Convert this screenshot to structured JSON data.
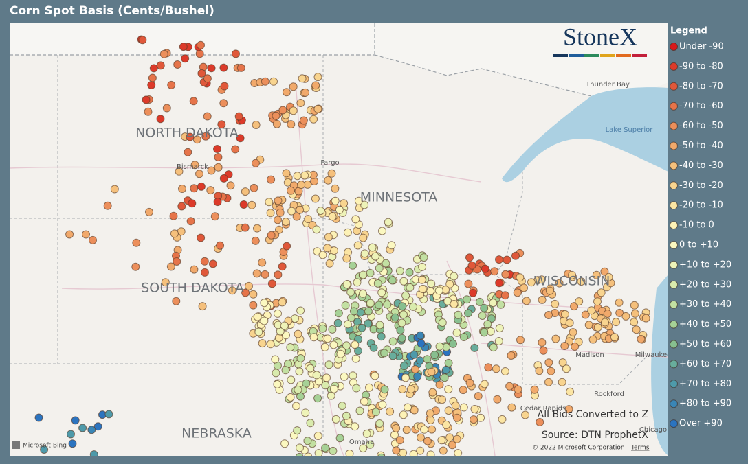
{
  "title": "Corn Spot Basis (Cents/Bushel)",
  "logo": "StoneX",
  "legend": {
    "title": "Legend",
    "items": [
      {
        "label": "Under -90",
        "color": "#d7191c"
      },
      {
        "label": "-90 to -80",
        "color": "#dc3a2a"
      },
      {
        "label": "-80 to -70",
        "color": "#e0583a"
      },
      {
        "label": "-70 to -60",
        "color": "#e6744a"
      },
      {
        "label": "-60 to -50",
        "color": "#ec8f5b"
      },
      {
        "label": "-50 to -40",
        "color": "#f1a96b"
      },
      {
        "label": "-40 to -30",
        "color": "#f5c07c"
      },
      {
        "label": "-30 to -20",
        "color": "#f8d48f"
      },
      {
        "label": "-20 to -10",
        "color": "#fbe5a3"
      },
      {
        "label": "-10 to 0",
        "color": "#fdf2b6"
      },
      {
        "label": "0 to +10",
        "color": "#fbf8c0"
      },
      {
        "label": "+10 to +20",
        "color": "#eef3b8"
      },
      {
        "label": "+20 to +30",
        "color": "#d9ebad"
      },
      {
        "label": "+30 to +40",
        "color": "#c2e0a2"
      },
      {
        "label": "+40 to +50",
        "color": "#a6d196"
      },
      {
        "label": "+50 to +60",
        "color": "#87bf8f"
      },
      {
        "label": "+60 to +70",
        "color": "#68ad9c"
      },
      {
        "label": "+70 to +80",
        "color": "#4e9aaa"
      },
      {
        "label": "+80 to +90",
        "color": "#3a86b6"
      },
      {
        "label": "Over +90",
        "color": "#2b74c0"
      }
    ]
  },
  "map_labels": {
    "states": [
      "NORTH DAKOTA",
      "SOUTH DAKOTA",
      "MINNESOTA",
      "WISCONSIN",
      "NEBRASKA"
    ],
    "cities": [
      "Bismarck",
      "Fargo",
      "Thunder Bay",
      "Madison",
      "Milwaukee",
      "Rockford",
      "Cedar Rapids",
      "Omaha",
      "Chicago"
    ],
    "water": [
      "Lake Superior"
    ]
  },
  "notes": [
    "All Bids Converted to Z",
    "Source: DTN ProphetX"
  ],
  "attribution": {
    "provider": "Microsoft Bing",
    "copyright": "© 2022 Microsoft Corporation",
    "terms": "Terms"
  }
}
